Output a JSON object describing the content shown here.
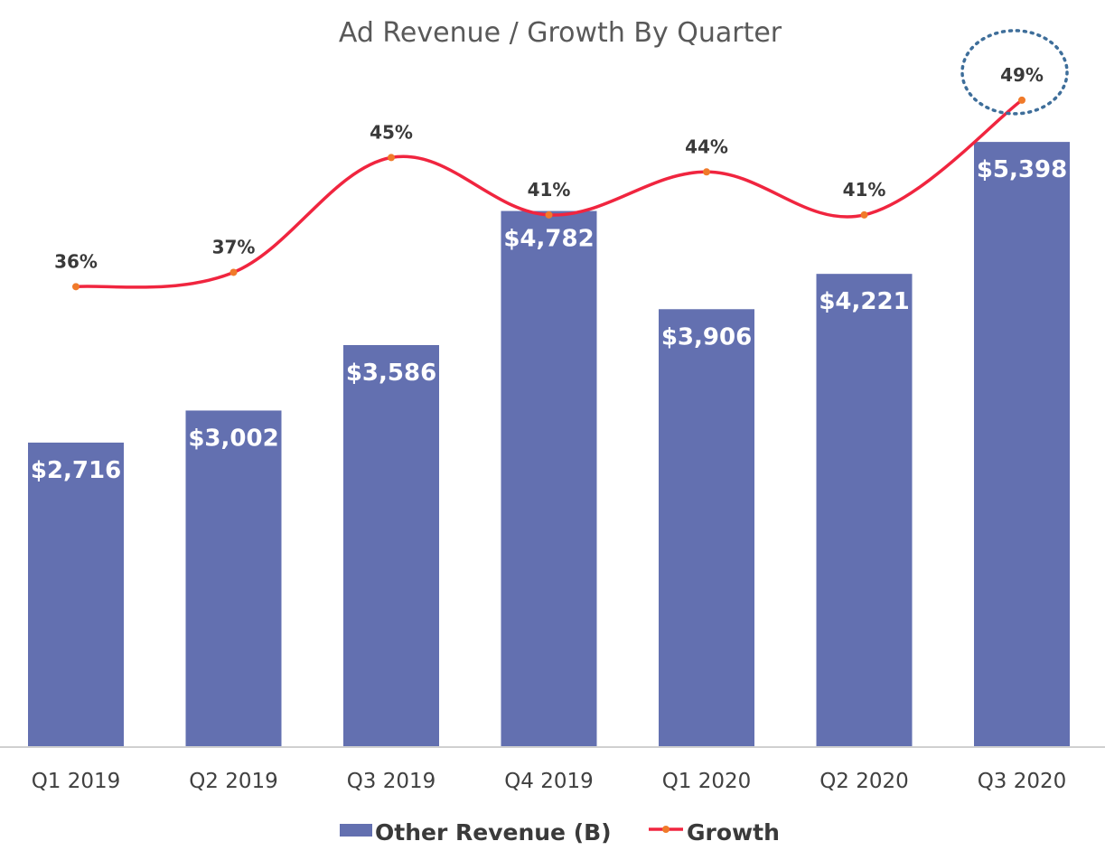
{
  "chart_data": {
    "type": "bar",
    "title": "Ad Revenue / Growth By Quarter",
    "categories": [
      "Q1 2019",
      "Q2 2019",
      "Q3 2019",
      "Q4 2019",
      "Q1 2020",
      "Q2 2020",
      "Q3 2020"
    ],
    "series": [
      {
        "name": "Other Revenue (B)",
        "type": "bar",
        "values": [
          2716,
          3002,
          3586,
          4782,
          3906,
          4221,
          5398
        ],
        "labels": [
          "$2,716",
          "$3,002",
          "$3,586",
          "$4,782",
          "$3,906",
          "$4,221",
          "$5,398"
        ],
        "color": "#6370b0"
      },
      {
        "name": "Growth",
        "type": "line",
        "values": [
          36,
          37,
          45,
          41,
          44,
          41,
          49
        ],
        "labels": [
          "36%",
          "37%",
          "45%",
          "41%",
          "44%",
          "41%",
          "49%"
        ],
        "color": "#f0253f",
        "marker_color": "#f07a2a"
      }
    ],
    "ylim": [
      0,
      6000
    ],
    "growth_ylim": [
      0,
      60
    ],
    "highlight": {
      "category": "Q3 2020",
      "style": "dotted-ellipse",
      "color": "#3e6e9a"
    },
    "legend": "bottom",
    "grid": false
  }
}
